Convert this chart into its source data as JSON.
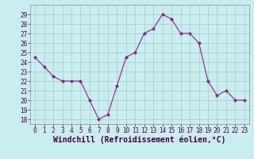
{
  "x": [
    0,
    1,
    2,
    3,
    4,
    5,
    6,
    7,
    8,
    9,
    10,
    11,
    12,
    13,
    14,
    15,
    16,
    17,
    18,
    19,
    20,
    21,
    22,
    23
  ],
  "y": [
    24.5,
    23.5,
    22.5,
    22.0,
    22.0,
    22.0,
    20.0,
    18.0,
    18.5,
    21.5,
    24.5,
    25.0,
    27.0,
    27.5,
    29.0,
    28.5,
    27.0,
    27.0,
    26.0,
    22.0,
    20.5,
    21.0,
    20.0,
    20.0
  ],
  "line_color": "#882288",
  "marker": "D",
  "marker_size": 2,
  "bg_color": "#c8eef0",
  "grid_color": "#a0ccc8",
  "xlabel": "Windchill (Refroidissement éolien,°C)",
  "ylabel": "",
  "xlim": [
    -0.5,
    23.5
  ],
  "ylim": [
    17.5,
    30.0
  ],
  "yticks": [
    18,
    19,
    20,
    21,
    22,
    23,
    24,
    25,
    26,
    27,
    28,
    29
  ],
  "xticks": [
    0,
    1,
    2,
    3,
    4,
    5,
    6,
    7,
    8,
    9,
    10,
    11,
    12,
    13,
    14,
    15,
    16,
    17,
    18,
    19,
    20,
    21,
    22,
    23
  ],
  "tick_fontsize": 5.5,
  "xlabel_fontsize": 7,
  "spine_color": "#888888"
}
